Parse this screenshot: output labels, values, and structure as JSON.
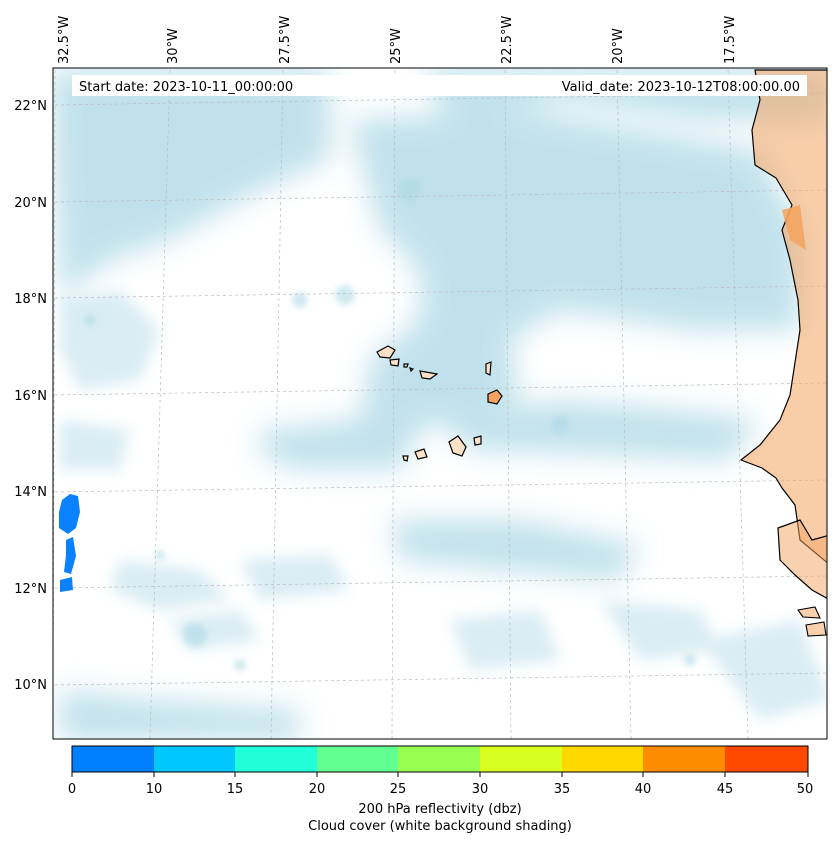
{
  "header": {
    "start_date": "Start date: 2023-10-11_00:00:00",
    "valid_date": "Valid_date: 2023-10-12T08:00:00.00"
  },
  "lon_labels": [
    "32.5°W",
    "30°W",
    "27.5°W",
    "25°W",
    "22.5°W",
    "20°W",
    "17.5°W"
  ],
  "lat_labels": [
    "22°N",
    "20°N",
    "18°N",
    "16°N",
    "14°N",
    "12°N",
    "10°N"
  ],
  "colorbar": {
    "ticks": [
      "0",
      "10",
      "15",
      "20",
      "25",
      "30",
      "35",
      "40",
      "45",
      "50"
    ],
    "colors": [
      "#0080ff",
      "#00c8ff",
      "#20ffd8",
      "#60ff90",
      "#98ff50",
      "#d8ff20",
      "#ffd800",
      "#ff8c00",
      "#ff4800"
    ],
    "label_line1": "200 hPa reflectivity (dbz)",
    "label_line2": "Cloud cover (white background shading)"
  },
  "colors": {
    "cloud": "#acd8e6",
    "land": "#f4a460",
    "reflectivity_low": "#0a82ff",
    "coastline": "#000000",
    "grid": "#bbbbbb"
  }
}
